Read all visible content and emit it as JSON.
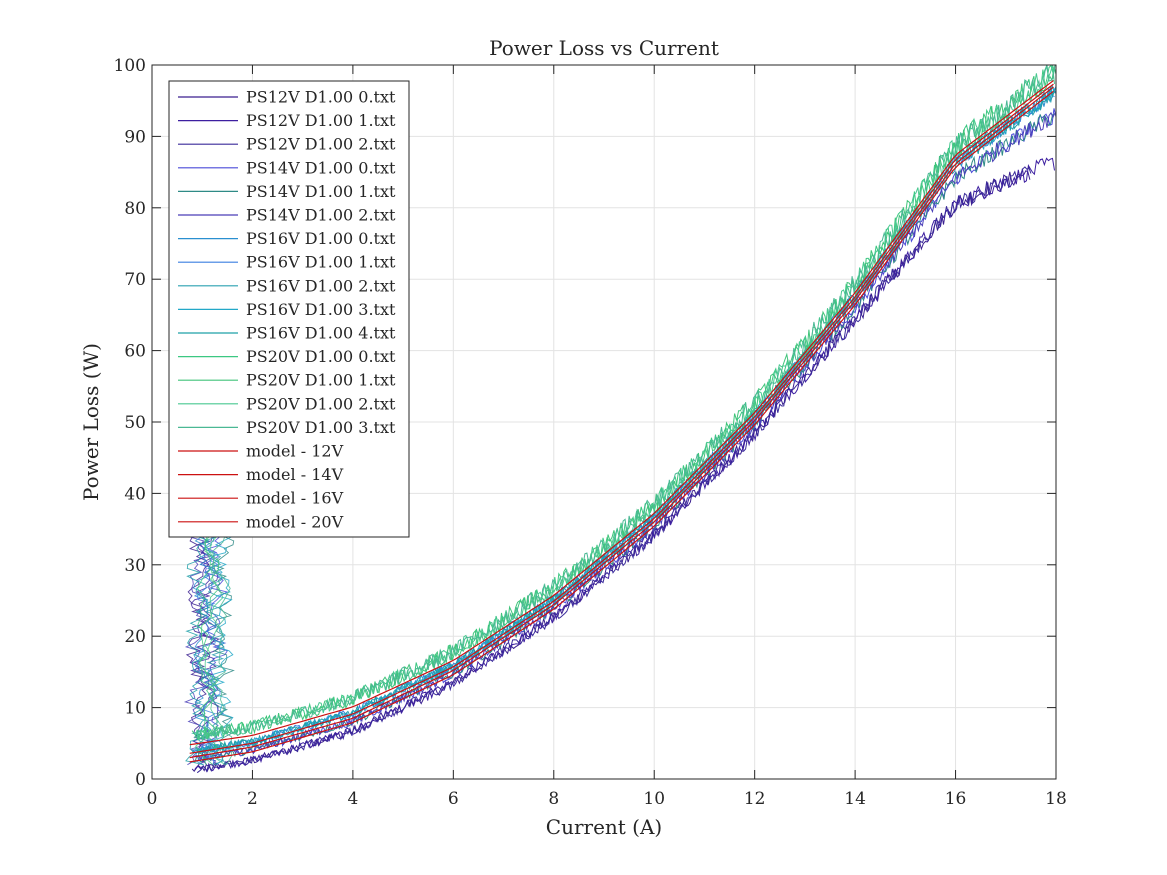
{
  "chart_data": {
    "type": "line",
    "title": "Power Loss vs Current",
    "xlabel": "Current (A)",
    "ylabel": "Power Loss (W)",
    "xlim": [
      0,
      18
    ],
    "ylim": [
      0,
      100
    ],
    "xticks": [
      0,
      2,
      4,
      6,
      8,
      10,
      12,
      14,
      16,
      18
    ],
    "yticks": [
      0,
      10,
      20,
      30,
      40,
      50,
      60,
      70,
      80,
      90,
      100
    ],
    "grid": true,
    "legend_position": "top-left",
    "series": [
      {
        "name": "PS12V D1.00 0.txt",
        "color": "#3b1f8f",
        "kind": "measured"
      },
      {
        "name": "PS12V D1.00 1.txt",
        "color": "#3d1fa0",
        "kind": "measured"
      },
      {
        "name": "PS12V D1.00 2.txt",
        "color": "#3a2a9a",
        "kind": "measured"
      },
      {
        "name": "PS14V D1.00 0.txt",
        "color": "#4a4ad8",
        "kind": "measured"
      },
      {
        "name": "PS14V D1.00 1.txt",
        "color": "#2e8a86",
        "kind": "measured"
      },
      {
        "name": "PS14V D1.00 2.txt",
        "color": "#4a3fb8",
        "kind": "measured"
      },
      {
        "name": "PS16V D1.00 0.txt",
        "color": "#2a8fd0",
        "kind": "measured"
      },
      {
        "name": "PS16V D1.00 1.txt",
        "color": "#3a7fe0",
        "kind": "measured"
      },
      {
        "name": "PS16V D1.00 2.txt",
        "color": "#2aa0b0",
        "kind": "measured"
      },
      {
        "name": "PS16V D1.00 3.txt",
        "color": "#22a8c8",
        "kind": "measured"
      },
      {
        "name": "PS16V D1.00 4.txt",
        "color": "#1fa0a8",
        "kind": "measured"
      },
      {
        "name": "PS20V D1.00 0.txt",
        "color": "#3cc882",
        "kind": "measured"
      },
      {
        "name": "PS20V D1.00 1.txt",
        "color": "#40c47a",
        "kind": "measured"
      },
      {
        "name": "PS20V D1.00 2.txt",
        "color": "#48c890",
        "kind": "measured"
      },
      {
        "name": "PS20V D1.00 3.txt",
        "color": "#4ab894",
        "kind": "measured"
      },
      {
        "name": "model - 12V",
        "color": "#cc1111",
        "kind": "model",
        "x": [
          0.75,
          2,
          4,
          6,
          8,
          10,
          12,
          14,
          16,
          18
        ],
        "y": [
          2.4,
          3.8,
          7.9,
          14.6,
          23.8,
          35.4,
          49.6,
          66.4,
          85.7,
          96.6
        ]
      },
      {
        "name": "model - 14V",
        "color": "#cc1111",
        "kind": "model",
        "x": [
          0.75,
          2,
          4,
          6,
          8,
          10,
          12,
          14,
          16,
          18
        ],
        "y": [
          3.0,
          4.5,
          8.5,
          15.2,
          24.4,
          36.0,
          50.2,
          67.0,
          86.2,
          97.2
        ]
      },
      {
        "name": "model - 16V",
        "color": "#cc1111",
        "kind": "model",
        "x": [
          0.75,
          2,
          4,
          6,
          8,
          10,
          12,
          14,
          16,
          18
        ],
        "y": [
          3.6,
          5.0,
          9.1,
          15.7,
          24.9,
          36.5,
          50.7,
          67.5,
          86.8,
          97.6
        ]
      },
      {
        "name": "model - 20V",
        "color": "#cc1111",
        "kind": "model",
        "x": [
          0.75,
          2,
          4,
          6,
          8,
          10,
          12,
          14,
          16,
          18
        ],
        "y": [
          4.8,
          6.1,
          10.1,
          16.6,
          25.7,
          37.2,
          51.3,
          68.1,
          87.4,
          98.1
        ]
      }
    ]
  }
}
